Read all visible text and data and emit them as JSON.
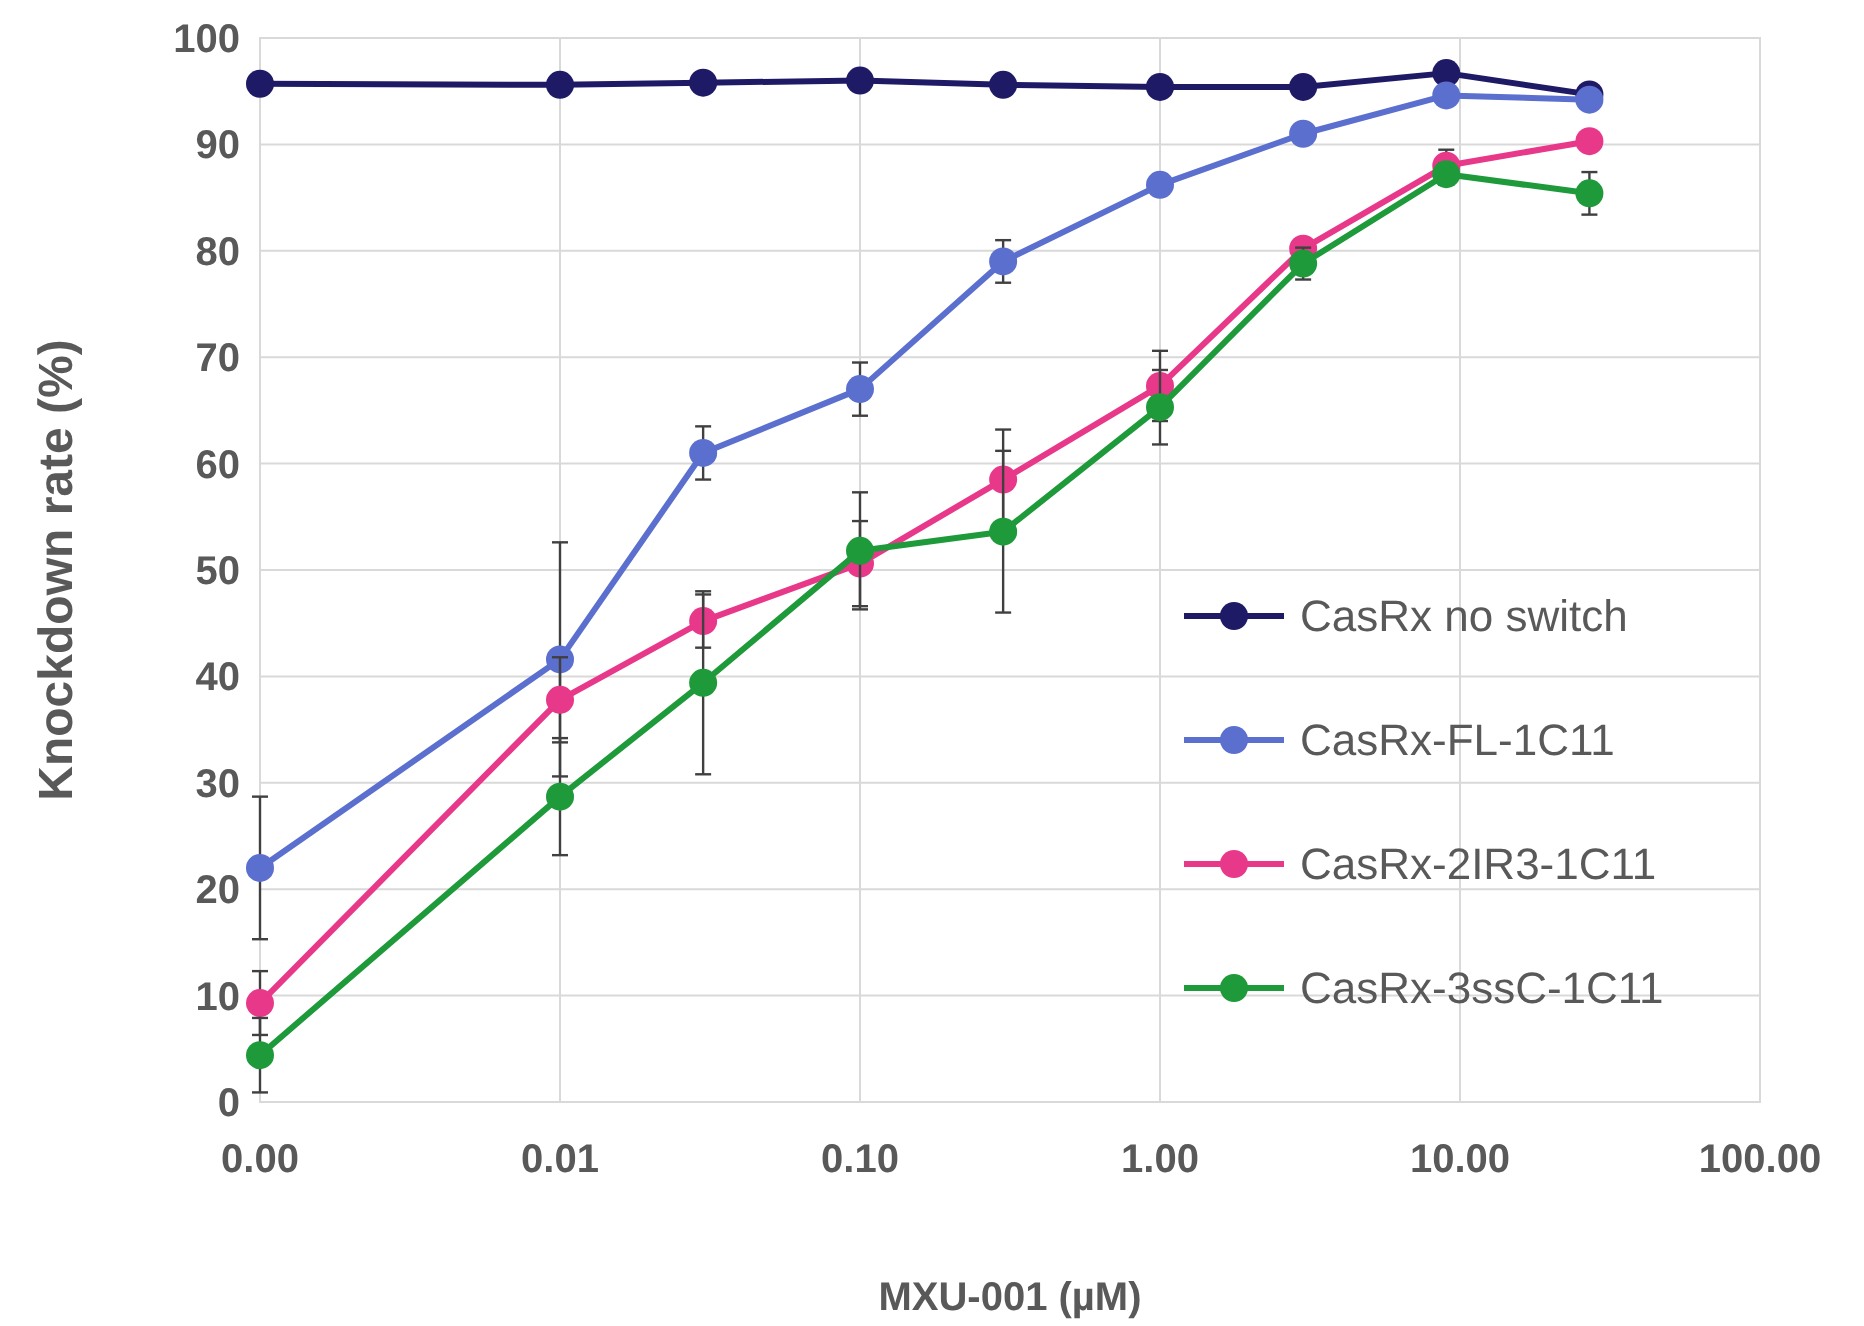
{
  "chart_data": {
    "type": "line",
    "xlabel": "MXU-001 (µM)",
    "ylabel": "Knockdown rate (%)",
    "log": "x",
    "xlim": [
      0.001,
      100
    ],
    "xticks": [
      {
        "value": 0.001,
        "label": "0.00"
      },
      {
        "value": 0.01,
        "label": "0.01"
      },
      {
        "value": 0.1,
        "label": "0.10"
      },
      {
        "value": 1,
        "label": "1.00"
      },
      {
        "value": 10,
        "label": "10.00"
      },
      {
        "value": 100,
        "label": "100.00"
      }
    ],
    "ylim": [
      0,
      100
    ],
    "yticks": [
      0,
      10,
      20,
      30,
      40,
      50,
      60,
      70,
      80,
      90,
      100
    ],
    "grid": true,
    "legend": "bottom right",
    "marker": "circle",
    "line_style": "solid",
    "x": [
      0.001,
      0.01,
      0.03,
      0.1,
      0.3,
      1,
      3,
      9,
      27
    ],
    "series": [
      {
        "name": "CasRx no switch",
        "color": "#1f1a66",
        "values": [
          95.7,
          95.6,
          95.8,
          96,
          95.6,
          95.4,
          95.4,
          96.7,
          94.7
        ]
      },
      {
        "name": "CasRx-FL-1C11",
        "color": "#5b6fce",
        "values": [
          22,
          41.6,
          61,
          67,
          79,
          86.2,
          91,
          94.6,
          94.2
        ],
        "errors": [
          6.7,
          11,
          2.5,
          2.5,
          2,
          null,
          null,
          null,
          null
        ]
      },
      {
        "name": "CasRx-2IR3-1C11",
        "color": "#e8388a",
        "values": [
          9.3,
          37.8,
          45.2,
          50.6,
          58.5,
          67.3,
          80.2,
          88,
          90.3
        ],
        "errors": [
          3,
          4,
          2.5,
          4,
          4.7,
          3.3,
          null,
          1.5,
          null
        ]
      },
      {
        "name": "CasRx-3ssC-1C11",
        "color": "#1e9a3a",
        "values": [
          4.4,
          28.7,
          39.4,
          51.8,
          53.6,
          65.3,
          78.8,
          87.2,
          85.4
        ],
        "errors": [
          3.5,
          5.5,
          8.6,
          5.5,
          7.6,
          3.5,
          1.5,
          1,
          2
        ]
      }
    ]
  }
}
